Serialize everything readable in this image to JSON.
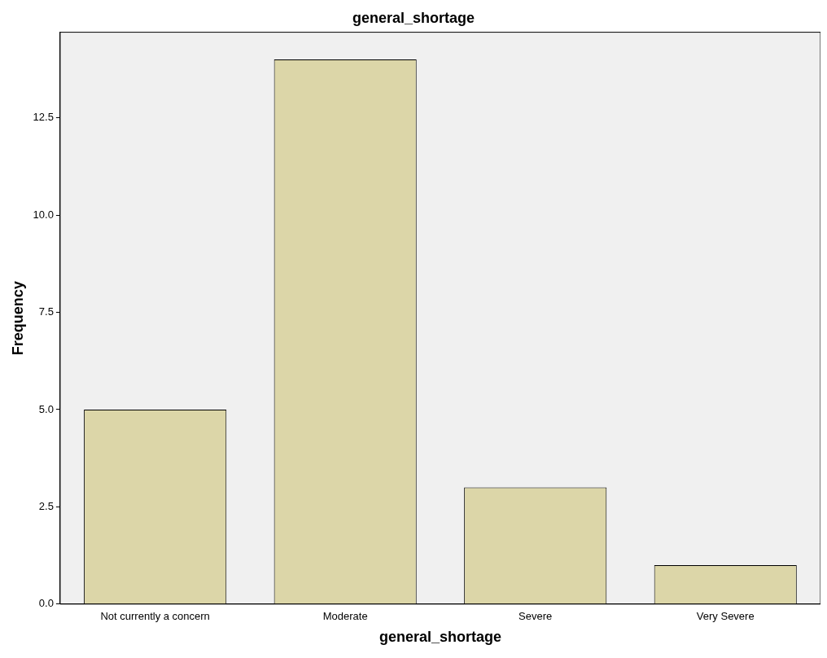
{
  "chart_data": {
    "type": "bar",
    "title": "general_shortage",
    "xlabel": "general_shortage",
    "ylabel": "Frequency",
    "categories": [
      "Not currently a concern",
      "Moderate",
      "Severe",
      "Very Severe"
    ],
    "values": [
      5,
      14,
      3,
      1
    ],
    "color": "#dcd6a8",
    "ylim": [
      0,
      14.7
    ],
    "yticks": [
      {
        "value": 0,
        "label": "0.0"
      },
      2.5,
      {
        "value": 5,
        "label": "5.0"
      },
      7.5,
      {
        "value": 10,
        "label": "10.0"
      },
      12.5
    ],
    "grid": false,
    "legend": false
  }
}
